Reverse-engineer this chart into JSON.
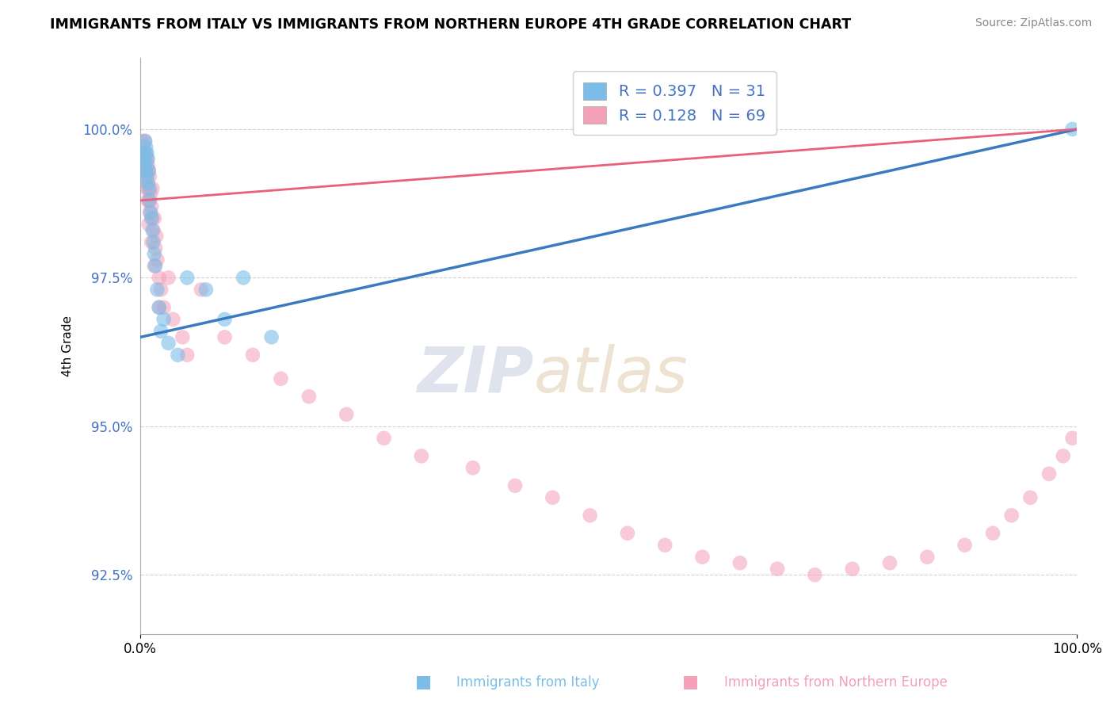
{
  "title": "IMMIGRANTS FROM ITALY VS IMMIGRANTS FROM NORTHERN EUROPE 4TH GRADE CORRELATION CHART",
  "source": "Source: ZipAtlas.com",
  "ylabel": "4th Grade",
  "xlim": [
    0.0,
    100.0
  ],
  "ylim": [
    91.5,
    101.2
  ],
  "yticks": [
    92.5,
    95.0,
    97.5,
    100.0
  ],
  "xticks": [
    0.0,
    100.0
  ],
  "xtick_labels": [
    "0.0%",
    "100.0%"
  ],
  "ytick_labels": [
    "92.5%",
    "95.0%",
    "97.5%",
    "100.0%"
  ],
  "blue_label": "Immigrants from Italy",
  "pink_label": "Immigrants from Northern Europe",
  "blue_R": 0.397,
  "blue_N": 31,
  "pink_R": 0.128,
  "pink_N": 69,
  "blue_color": "#7bbde8",
  "pink_color": "#f4a0b8",
  "blue_line_color": "#3a7abf",
  "pink_line_color": "#e8607a",
  "blue_x": [
    0.3,
    0.4,
    0.5,
    0.5,
    0.6,
    0.6,
    0.7,
    0.7,
    0.8,
    0.8,
    0.9,
    1.0,
    1.0,
    1.1,
    1.2,
    1.3,
    1.4,
    1.5,
    1.6,
    1.8,
    2.0,
    2.2,
    2.5,
    3.0,
    4.0,
    5.0,
    7.0,
    9.0,
    11.0,
    14.0,
    99.5
  ],
  "blue_y": [
    99.6,
    99.5,
    99.8,
    99.3,
    99.7,
    99.4,
    99.6,
    99.2,
    99.5,
    99.1,
    99.3,
    99.0,
    98.8,
    98.6,
    98.5,
    98.3,
    98.1,
    97.9,
    97.7,
    97.3,
    97.0,
    96.6,
    96.8,
    96.4,
    96.2,
    97.5,
    97.3,
    96.8,
    97.5,
    96.5,
    100.0
  ],
  "pink_x": [
    0.2,
    0.3,
    0.3,
    0.4,
    0.4,
    0.5,
    0.5,
    0.6,
    0.6,
    0.7,
    0.7,
    0.8,
    0.8,
    0.9,
    0.9,
    1.0,
    1.0,
    1.1,
    1.2,
    1.3,
    1.3,
    1.4,
    1.5,
    1.6,
    1.7,
    1.8,
    2.0,
    2.2,
    2.5,
    3.0,
    3.5,
    4.5,
    5.0,
    6.5,
    9.0,
    12.0,
    15.0,
    18.0,
    22.0,
    26.0,
    30.0,
    35.5,
    40.0,
    44.0,
    48.0,
    52.0,
    56.0,
    60.0,
    64.0,
    68.0,
    72.0,
    76.0,
    80.0,
    84.0,
    88.0,
    91.0,
    93.0,
    95.0,
    97.0,
    98.5,
    99.5,
    0.5,
    0.6,
    0.7,
    0.8,
    0.9,
    1.2,
    1.5,
    2.0
  ],
  "pink_y": [
    99.8,
    99.7,
    99.5,
    99.6,
    99.4,
    99.5,
    99.2,
    99.6,
    99.3,
    99.5,
    99.1,
    99.4,
    99.0,
    99.3,
    98.8,
    99.2,
    98.6,
    98.9,
    98.7,
    98.5,
    99.0,
    98.3,
    98.5,
    98.0,
    98.2,
    97.8,
    97.5,
    97.3,
    97.0,
    97.5,
    96.8,
    96.5,
    96.2,
    97.3,
    96.5,
    96.2,
    95.8,
    95.5,
    95.2,
    94.8,
    94.5,
    94.3,
    94.0,
    93.8,
    93.5,
    93.2,
    93.0,
    92.8,
    92.7,
    92.6,
    92.5,
    92.6,
    92.7,
    92.8,
    93.0,
    93.2,
    93.5,
    93.8,
    94.2,
    94.5,
    94.8,
    99.8,
    99.3,
    99.0,
    98.8,
    98.4,
    98.1,
    97.7,
    97.0
  ],
  "blue_trend_x": [
    0,
    100
  ],
  "blue_trend_y_start": 96.5,
  "blue_trend_y_end": 100.0,
  "pink_trend_y_start": 98.8,
  "pink_trend_y_end": 100.0,
  "watermark_text": "ZIPatlas",
  "watermark_zip": "ZIP",
  "watermark_atlas": "atlas"
}
